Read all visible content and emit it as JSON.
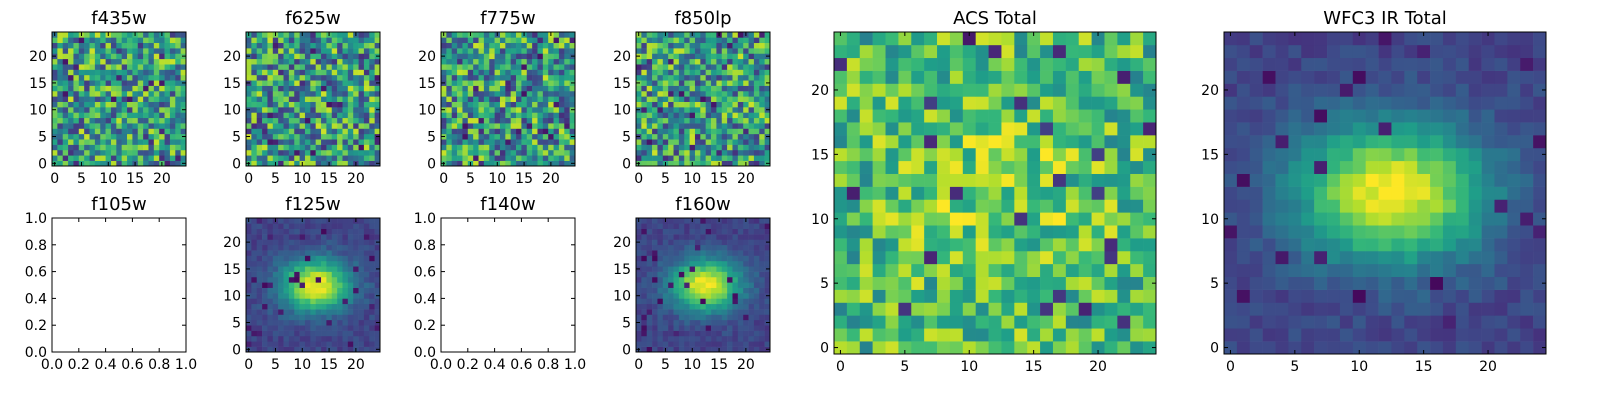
{
  "chart_data": [
    {
      "type": "heatmap",
      "title": "f435w",
      "has_image": true,
      "profile": "noise",
      "x_ticks": [
        "0",
        "5",
        "10",
        "15",
        "20"
      ],
      "y_ticks": [
        "0",
        "5",
        "10",
        "15",
        "20"
      ],
      "xlim": [
        -0.5,
        24.5
      ],
      "ylim": [
        -0.5,
        24.5
      ],
      "colormap": "viridis",
      "grid": false
    },
    {
      "type": "heatmap",
      "title": "f625w",
      "has_image": true,
      "profile": "noise",
      "x_ticks": [
        "0",
        "5",
        "10",
        "15",
        "20"
      ],
      "y_ticks": [
        "0",
        "5",
        "10",
        "15",
        "20"
      ],
      "xlim": [
        -0.5,
        24.5
      ],
      "ylim": [
        -0.5,
        24.5
      ],
      "colormap": "viridis",
      "grid": false
    },
    {
      "type": "heatmap",
      "title": "f775w",
      "has_image": true,
      "profile": "noise",
      "x_ticks": [
        "0",
        "5",
        "10",
        "15",
        "20"
      ],
      "y_ticks": [
        "0",
        "5",
        "10",
        "15",
        "20"
      ],
      "xlim": [
        -0.5,
        24.5
      ],
      "ylim": [
        -0.5,
        24.5
      ],
      "colormap": "viridis",
      "grid": false
    },
    {
      "type": "heatmap",
      "title": "f850lp",
      "has_image": true,
      "profile": "noise",
      "x_ticks": [
        "0",
        "5",
        "10",
        "15",
        "20"
      ],
      "y_ticks": [
        "0",
        "5",
        "10",
        "15",
        "20"
      ],
      "xlim": [
        -0.5,
        24.5
      ],
      "ylim": [
        -0.5,
        24.5
      ],
      "colormap": "viridis",
      "grid": false
    },
    {
      "type": "heatmap",
      "title": "f105w",
      "has_image": false,
      "profile": "empty",
      "x_ticks": [
        "0.0",
        "0.2",
        "0.4",
        "0.6",
        "0.8",
        "1.0"
      ],
      "y_ticks": [
        "0.0",
        "0.2",
        "0.4",
        "0.6",
        "0.8",
        "1.0"
      ],
      "xlim": [
        0,
        1
      ],
      "ylim": [
        0,
        1
      ],
      "grid": false
    },
    {
      "type": "heatmap",
      "title": "f125w",
      "has_image": true,
      "profile": "source",
      "x_ticks": [
        "0",
        "5",
        "10",
        "15",
        "20"
      ],
      "y_ticks": [
        "0",
        "5",
        "10",
        "15",
        "20"
      ],
      "xlim": [
        -0.5,
        24.5
      ],
      "ylim": [
        -0.5,
        24.5
      ],
      "colormap": "viridis",
      "peak": [
        12.5,
        12
      ],
      "grid": false
    },
    {
      "type": "heatmap",
      "title": "f140w",
      "has_image": false,
      "profile": "empty",
      "x_ticks": [
        "0.0",
        "0.2",
        "0.4",
        "0.6",
        "0.8",
        "1.0"
      ],
      "y_ticks": [
        "0.0",
        "0.2",
        "0.4",
        "0.6",
        "0.8",
        "1.0"
      ],
      "xlim": [
        0,
        1
      ],
      "ylim": [
        0,
        1
      ],
      "grid": false
    },
    {
      "type": "heatmap",
      "title": "f160w",
      "has_image": true,
      "profile": "source",
      "x_ticks": [
        "0",
        "5",
        "10",
        "15",
        "20"
      ],
      "y_ticks": [
        "0",
        "5",
        "10",
        "15",
        "20"
      ],
      "xlim": [
        -0.5,
        24.5
      ],
      "ylim": [
        -0.5,
        24.5
      ],
      "colormap": "viridis",
      "peak": [
        12.5,
        12
      ],
      "grid": false
    },
    {
      "type": "heatmap",
      "title": "ACS Total",
      "has_image": true,
      "profile": "noise_bright",
      "x_ticks": [
        "0",
        "5",
        "10",
        "15",
        "20"
      ],
      "y_ticks": [
        "0",
        "5",
        "10",
        "15",
        "20"
      ],
      "xlim": [
        -0.5,
        24.5
      ],
      "ylim": [
        -0.5,
        24.5
      ],
      "colormap": "viridis",
      "grid": false
    },
    {
      "type": "heatmap",
      "title": "WFC3 IR Total",
      "has_image": true,
      "profile": "source_wide",
      "x_ticks": [
        "0",
        "5",
        "10",
        "15",
        "20"
      ],
      "y_ticks": [
        "0",
        "5",
        "10",
        "15",
        "20"
      ],
      "xlim": [
        -0.5,
        24.5
      ],
      "ylim": [
        -0.5,
        24.5
      ],
      "colormap": "viridis",
      "peak": [
        12.5,
        12
      ],
      "grid": false
    }
  ]
}
